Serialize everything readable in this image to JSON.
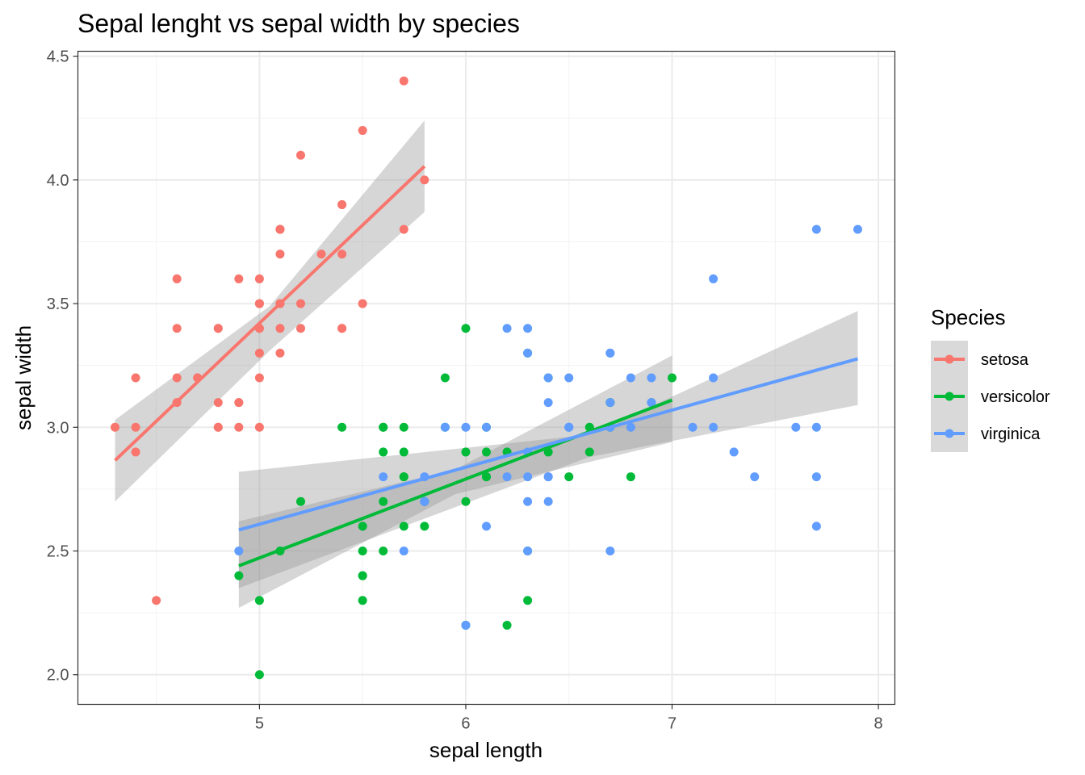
{
  "chart_data": {
    "type": "scatter",
    "title": "Sepal lenght vs sepal width by species",
    "xlabel": "sepal length",
    "ylabel": "sepal width",
    "xlim": [
      4.12,
      8.08
    ],
    "ylim": [
      1.88,
      4.52
    ],
    "xticks": [
      5,
      6,
      7,
      8
    ],
    "xtick_labels": [
      "5",
      "6",
      "7",
      "8"
    ],
    "yticks": [
      2.0,
      2.5,
      3.0,
      3.5,
      4.0,
      4.5
    ],
    "ytick_labels": [
      "2.0",
      "2.5",
      "3.0",
      "3.5",
      "4.0",
      "4.5"
    ],
    "grid": true,
    "legend": {
      "title": "Species",
      "position": "right"
    },
    "series": [
      {
        "name": "setosa",
        "color": "#F8766D",
        "points": [
          [
            5.1,
            3.5
          ],
          [
            4.9,
            3.0
          ],
          [
            4.7,
            3.2
          ],
          [
            4.6,
            3.1
          ],
          [
            5.0,
            3.6
          ],
          [
            5.4,
            3.9
          ],
          [
            4.6,
            3.4
          ],
          [
            5.0,
            3.4
          ],
          [
            4.4,
            2.9
          ],
          [
            4.9,
            3.1
          ],
          [
            5.4,
            3.7
          ],
          [
            4.8,
            3.4
          ],
          [
            4.8,
            3.0
          ],
          [
            4.3,
            3.0
          ],
          [
            5.8,
            4.0
          ],
          [
            5.7,
            4.4
          ],
          [
            5.4,
            3.9
          ],
          [
            5.1,
            3.5
          ],
          [
            5.7,
            3.8
          ],
          [
            5.1,
            3.8
          ],
          [
            5.4,
            3.4
          ],
          [
            5.1,
            3.7
          ],
          [
            4.6,
            3.6
          ],
          [
            5.1,
            3.3
          ],
          [
            4.8,
            3.4
          ],
          [
            5.0,
            3.0
          ],
          [
            5.0,
            3.4
          ],
          [
            5.2,
            3.5
          ],
          [
            5.2,
            3.4
          ],
          [
            4.7,
            3.2
          ],
          [
            4.8,
            3.1
          ],
          [
            5.4,
            3.4
          ],
          [
            5.2,
            4.1
          ],
          [
            5.5,
            4.2
          ],
          [
            4.9,
            3.1
          ],
          [
            5.0,
            3.2
          ],
          [
            5.5,
            3.5
          ],
          [
            4.9,
            3.6
          ],
          [
            4.4,
            3.0
          ],
          [
            5.1,
            3.4
          ],
          [
            5.0,
            3.5
          ],
          [
            4.5,
            2.3
          ],
          [
            4.4,
            3.2
          ],
          [
            5.0,
            3.5
          ],
          [
            5.1,
            3.8
          ],
          [
            4.8,
            3.0
          ],
          [
            5.1,
            3.8
          ],
          [
            4.6,
            3.2
          ],
          [
            5.3,
            3.7
          ],
          [
            5.0,
            3.3
          ]
        ],
        "fit": {
          "x": [
            4.3,
            5.8
          ],
          "y": [
            2.866,
            4.055
          ]
        },
        "band": {
          "x": [
            4.3,
            5.05,
            5.8
          ],
          "upper": [
            3.03,
            3.49,
            4.24
          ],
          "lower": [
            2.7,
            3.31,
            3.87
          ]
        }
      },
      {
        "name": "versicolor",
        "color": "#00BA38",
        "points": [
          [
            7.0,
            3.2
          ],
          [
            6.4,
            3.2
          ],
          [
            6.9,
            3.1
          ],
          [
            5.5,
            2.3
          ],
          [
            6.5,
            2.8
          ],
          [
            5.7,
            2.8
          ],
          [
            6.3,
            3.3
          ],
          [
            4.9,
            2.4
          ],
          [
            6.6,
            2.9
          ],
          [
            5.2,
            2.7
          ],
          [
            5.0,
            2.0
          ],
          [
            5.9,
            3.0
          ],
          [
            6.0,
            2.2
          ],
          [
            6.1,
            2.9
          ],
          [
            5.6,
            2.9
          ],
          [
            6.7,
            3.1
          ],
          [
            5.6,
            3.0
          ],
          [
            5.8,
            2.7
          ],
          [
            6.2,
            2.2
          ],
          [
            5.6,
            2.5
          ],
          [
            5.9,
            3.2
          ],
          [
            6.1,
            2.8
          ],
          [
            6.3,
            2.5
          ],
          [
            6.1,
            2.8
          ],
          [
            6.4,
            2.9
          ],
          [
            6.6,
            3.0
          ],
          [
            6.8,
            2.8
          ],
          [
            6.7,
            3.0
          ],
          [
            6.0,
            2.9
          ],
          [
            5.7,
            2.6
          ],
          [
            5.5,
            2.4
          ],
          [
            5.5,
            2.4
          ],
          [
            5.8,
            2.7
          ],
          [
            6.0,
            2.7
          ],
          [
            5.4,
            3.0
          ],
          [
            6.0,
            3.4
          ],
          [
            6.7,
            3.1
          ],
          [
            6.3,
            2.3
          ],
          [
            5.6,
            3.0
          ],
          [
            5.5,
            2.5
          ],
          [
            5.5,
            2.6
          ],
          [
            6.1,
            3.0
          ],
          [
            5.8,
            2.6
          ],
          [
            5.0,
            2.3
          ],
          [
            5.6,
            2.7
          ],
          [
            5.7,
            3.0
          ],
          [
            5.7,
            2.9
          ],
          [
            6.2,
            2.9
          ],
          [
            5.1,
            2.5
          ],
          [
            5.7,
            2.8
          ]
        ],
        "fit": {
          "x": [
            4.9,
            7.0
          ],
          "y": [
            2.44,
            3.11
          ]
        },
        "band": {
          "x": [
            4.9,
            5.95,
            7.0
          ],
          "upper": [
            2.62,
            2.83,
            3.29
          ],
          "lower": [
            2.27,
            2.73,
            2.94
          ]
        }
      },
      {
        "name": "virginica",
        "color": "#619CFF",
        "points": [
          [
            6.3,
            3.3
          ],
          [
            5.8,
            2.7
          ],
          [
            7.1,
            3.0
          ],
          [
            6.3,
            2.9
          ],
          [
            6.5,
            3.0
          ],
          [
            7.6,
            3.0
          ],
          [
            4.9,
            2.5
          ],
          [
            7.3,
            2.9
          ],
          [
            6.7,
            2.5
          ],
          [
            7.2,
            3.6
          ],
          [
            6.5,
            3.2
          ],
          [
            6.4,
            2.7
          ],
          [
            6.8,
            3.0
          ],
          [
            5.7,
            2.5
          ],
          [
            5.8,
            2.8
          ],
          [
            6.4,
            3.2
          ],
          [
            6.5,
            3.0
          ],
          [
            7.7,
            3.8
          ],
          [
            7.7,
            2.6
          ],
          [
            6.0,
            2.2
          ],
          [
            6.9,
            3.2
          ],
          [
            5.6,
            2.8
          ],
          [
            7.7,
            2.8
          ],
          [
            6.3,
            2.7
          ],
          [
            6.7,
            3.3
          ],
          [
            7.2,
            3.2
          ],
          [
            6.2,
            2.8
          ],
          [
            6.1,
            3.0
          ],
          [
            6.4,
            2.8
          ],
          [
            7.2,
            3.0
          ],
          [
            7.4,
            2.8
          ],
          [
            7.9,
            3.8
          ],
          [
            6.4,
            2.8
          ],
          [
            6.3,
            2.8
          ],
          [
            6.1,
            2.6
          ],
          [
            7.7,
            3.0
          ],
          [
            6.3,
            3.4
          ],
          [
            6.4,
            3.1
          ],
          [
            6.0,
            3.0
          ],
          [
            6.9,
            3.1
          ],
          [
            6.7,
            3.1
          ],
          [
            6.9,
            3.1
          ],
          [
            5.8,
            2.7
          ],
          [
            6.8,
            3.2
          ],
          [
            6.7,
            3.3
          ],
          [
            6.7,
            3.0
          ],
          [
            6.3,
            2.5
          ],
          [
            6.5,
            3.0
          ],
          [
            6.2,
            3.4
          ],
          [
            5.9,
            3.0
          ]
        ],
        "fit": {
          "x": [
            4.9,
            7.9
          ],
          "y": [
            2.585,
            3.277
          ]
        },
        "band": {
          "x": [
            4.9,
            6.6,
            7.9
          ],
          "upper": [
            2.82,
            2.97,
            3.47
          ],
          "lower": [
            2.35,
            2.88,
            3.09
          ]
        }
      }
    ]
  }
}
